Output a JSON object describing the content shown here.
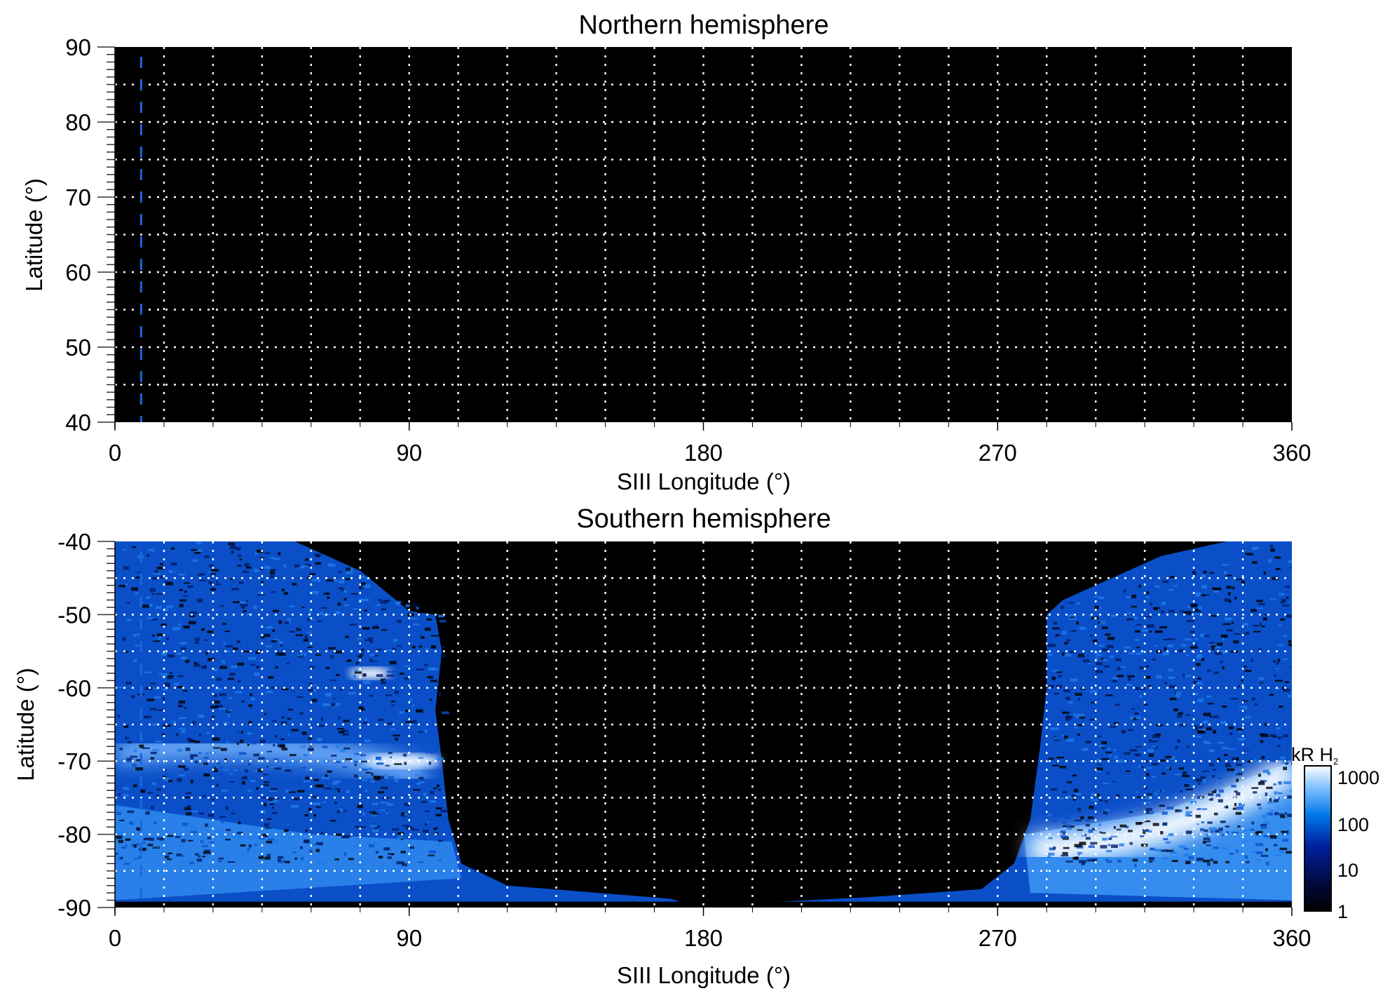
{
  "chart_data": [
    {
      "type": "heatmap",
      "title": "Northern hemisphere",
      "xlabel": "SIII Longitude (°)",
      "ylabel": "Latitude (°)",
      "xlim": [
        0,
        360
      ],
      "ylim": [
        40,
        90
      ],
      "xticks": [
        "0",
        "90",
        "180",
        "270",
        "360"
      ],
      "yticks": [
        "40",
        "50",
        "60",
        "70",
        "80",
        "90"
      ],
      "grid": {
        "on": true,
        "style": "dotted",
        "color": "#ffffff",
        "x_step": 15,
        "y_step": 5
      },
      "marker_line": {
        "longitude": 8,
        "color": "#1a66dd",
        "style": "dashed"
      },
      "values": "no emission (all black)"
    },
    {
      "type": "heatmap",
      "title": "Southern hemisphere",
      "xlabel": "SIII Longitude (°)",
      "ylabel": "Latitude (°)",
      "xlim": [
        0,
        360
      ],
      "ylim": [
        -90,
        -40
      ],
      "xticks": [
        "0",
        "90",
        "180",
        "270",
        "360"
      ],
      "yticks": [
        "-90",
        "-80",
        "-70",
        "-60",
        "-50",
        "-40"
      ],
      "grid": {
        "on": true,
        "style": "dotted",
        "color": "#ffffff",
        "x_step": 15,
        "y_step": 5
      },
      "marker_line": {
        "longitude": 8,
        "color": "#1a66dd",
        "style": "dashed"
      },
      "emission_regions": [
        {
          "lon_range": [
            0,
            105
          ],
          "lat_range": [
            -90,
            -40
          ],
          "description_level": "10-300"
        },
        {
          "lon_range": [
            275,
            360
          ],
          "lat_range": [
            -90,
            -40
          ],
          "description_level": "10-300"
        }
      ],
      "bright_features": [
        {
          "lon": 75,
          "lat": -58,
          "level": 1000
        },
        {
          "lon": 88,
          "lat": -70,
          "level": 1000
        },
        {
          "lon": 310,
          "lat": -80,
          "level": 1000
        }
      ]
    }
  ],
  "colorbar": {
    "label": "kR H",
    "label_sub": "2",
    "scale": "log",
    "range": [
      1,
      1000
    ],
    "ticks": [
      "1000",
      "100",
      "10",
      "1"
    ],
    "colors": [
      "#000000",
      "#000a40",
      "#0020a0",
      "#0078e8",
      "#80c0ff",
      "#ffffff"
    ]
  }
}
